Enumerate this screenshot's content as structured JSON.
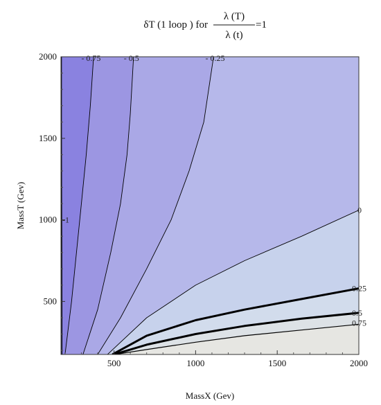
{
  "chart_data": {
    "type": "contour",
    "title": {
      "prefix": "δT (1 loop ) for",
      "numerator": "λ (T)",
      "denominator": "λ (t)",
      "suffix": "=1"
    },
    "xlabel": "MassX (Gev)",
    "ylabel": "MassT (Gev)",
    "xlim": [
      175,
      2000
    ],
    "ylim": [
      175,
      2000
    ],
    "xticks": [
      500,
      1000,
      1500,
      2000
    ],
    "yticks": [
      500,
      1000,
      1500,
      2000
    ],
    "contours": [
      {
        "level": "-1",
        "label": "-1",
        "width": 1.2,
        "points": [
          [
            181,
            175
          ],
          [
            181,
            400
          ],
          [
            180,
            800
          ],
          [
            179,
            1200
          ],
          [
            178,
            1600
          ],
          [
            178,
            2000
          ]
        ]
      },
      {
        "level": "-0.75",
        "label": "- 0.75",
        "width": 0.9,
        "points": [
          [
            200,
            175
          ],
          [
            240,
            500
          ],
          [
            270,
            800
          ],
          [
            300,
            1100
          ],
          [
            330,
            1400
          ],
          [
            355,
            1700
          ],
          [
            375,
            2000
          ]
        ]
      },
      {
        "level": "-0.5",
        "label": "- 0.5",
        "width": 0.9,
        "points": [
          [
            310,
            175
          ],
          [
            400,
            450
          ],
          [
            480,
            800
          ],
          [
            540,
            1100
          ],
          [
            580,
            1400
          ],
          [
            600,
            1650
          ],
          [
            620,
            2000
          ]
        ]
      },
      {
        "level": "-0.25",
        "label": "- 0.25",
        "width": 0.9,
        "points": [
          [
            400,
            175
          ],
          [
            540,
            400
          ],
          [
            700,
            700
          ],
          [
            850,
            1000
          ],
          [
            960,
            1300
          ],
          [
            1050,
            1600
          ],
          [
            1110,
            2000
          ]
        ]
      },
      {
        "level": "0",
        "label": "0",
        "width": 0.9,
        "points": [
          [
            460,
            175
          ],
          [
            700,
            400
          ],
          [
            1000,
            600
          ],
          [
            1300,
            750
          ],
          [
            1650,
            900
          ],
          [
            2000,
            1060
          ]
        ]
      },
      {
        "level": "0.25",
        "label": "0.25",
        "width": 3,
        "points": [
          [
            490,
            175
          ],
          [
            700,
            290
          ],
          [
            1000,
            385
          ],
          [
            1300,
            450
          ],
          [
            1650,
            515
          ],
          [
            2000,
            580
          ]
        ]
      },
      {
        "level": "0.5",
        "label": "0.5",
        "width": 3,
        "points": [
          [
            500,
            175
          ],
          [
            700,
            235
          ],
          [
            1000,
            300
          ],
          [
            1300,
            350
          ],
          [
            1650,
            395
          ],
          [
            2000,
            430
          ]
        ]
      },
      {
        "level": "0.75",
        "label": "0.75",
        "width": 1.2,
        "points": [
          [
            505,
            175
          ],
          [
            700,
            205
          ],
          [
            1000,
            250
          ],
          [
            1300,
            290
          ],
          [
            1650,
            325
          ],
          [
            2000,
            360
          ]
        ]
      }
    ],
    "colors": {
      "region_lt_m075": "#8a82e0",
      "region_m075_m05": "#9c96e2",
      "region_m05_m025": "#aaa8e6",
      "region_m025_0": "#b6b8ea",
      "region_0_025": "#c7d2ec",
      "region_025_05": "#d2dcec",
      "region_05_075": "#dde2e6",
      "region_gt_075": "#e6e6e2",
      "line": "#000000"
    },
    "grid": false,
    "legend": "none"
  }
}
